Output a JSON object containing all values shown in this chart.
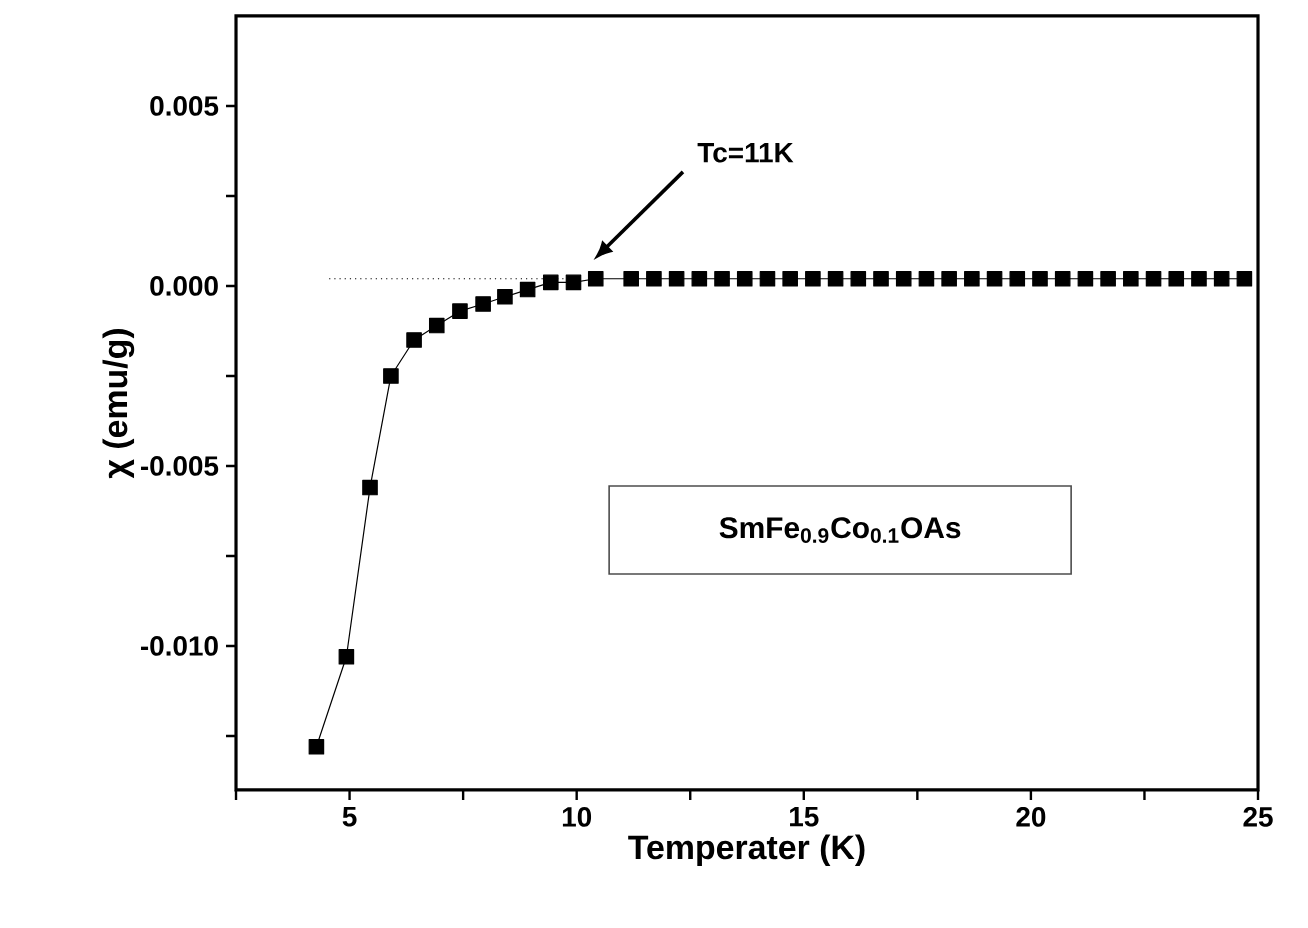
{
  "chart_data": {
    "type": "line",
    "xlabel": "Temperater (K)",
    "ylabel": "χ (emu/g)",
    "xlim": [
      2.5,
      25
    ],
    "ylim": [
      -0.014,
      0.0075
    ],
    "xticks": [
      {
        "value": 2.5,
        "label": null
      },
      5,
      {
        "value": 7.5,
        "label": null
      },
      10,
      {
        "value": 12.5,
        "label": null
      },
      15,
      {
        "value": 17.5,
        "label": null
      },
      20,
      {
        "value": 22.5,
        "label": null
      },
      25
    ],
    "yticks": [
      {
        "value": -0.0125,
        "label": null
      },
      {
        "value": -0.01,
        "label": "-0.010"
      },
      {
        "value": -0.0075,
        "label": null
      },
      -0.005,
      {
        "value": -0.0025,
        "label": null
      },
      {
        "value": 0,
        "label": "0.000"
      },
      {
        "value": 0.0025,
        "label": null
      },
      0.005
    ],
    "series": [
      {
        "color": "#000000",
        "marker": "square",
        "line_style": "solid",
        "x": [
          4.27,
          4.93,
          5.45,
          5.91,
          6.42,
          6.92,
          7.43,
          7.94,
          8.42,
          8.92,
          9.43,
          9.93,
          10.42,
          11.2,
          11.7,
          12.2,
          12.7,
          13.2,
          13.7,
          14.2,
          14.7,
          15.2,
          15.7,
          16.2,
          16.7,
          17.2,
          17.7,
          18.2,
          18.7,
          19.2,
          19.7,
          20.2,
          20.7,
          21.2,
          21.7,
          22.2,
          22.7,
          23.2,
          23.7,
          24.2,
          24.7
        ],
        "values": [
          -0.0128,
          -0.0103,
          -0.0056,
          -0.0025,
          -0.0015,
          -0.0011,
          -0.0007,
          -0.0005,
          -0.0003,
          -0.0001,
          0.0001,
          0.0001,
          0.0002,
          0.0002,
          0.0002,
          0.0002,
          0.0002,
          0.0002,
          0.0002,
          0.0002,
          0.0002,
          0.0002,
          0.0002,
          0.0002,
          0.0002,
          0.0002,
          0.0002,
          0.0002,
          0.0002,
          0.0002,
          0.0002,
          0.0002,
          0.0002,
          0.0002,
          0.0002,
          0.0002,
          0.0002,
          0.0002,
          0.0002,
          0.0002,
          0.0002
        ]
      },
      {
        "color": "#000000",
        "marker": "none",
        "line_style": "dotted",
        "x": [
          4.55,
          10.0
        ],
        "values": [
          0.0002,
          0.0002
        ]
      }
    ],
    "annotations": [
      "Tc=11K",
      "SmFe$_{0.9}$Co$_{0.1}$OAs"
    ]
  }
}
